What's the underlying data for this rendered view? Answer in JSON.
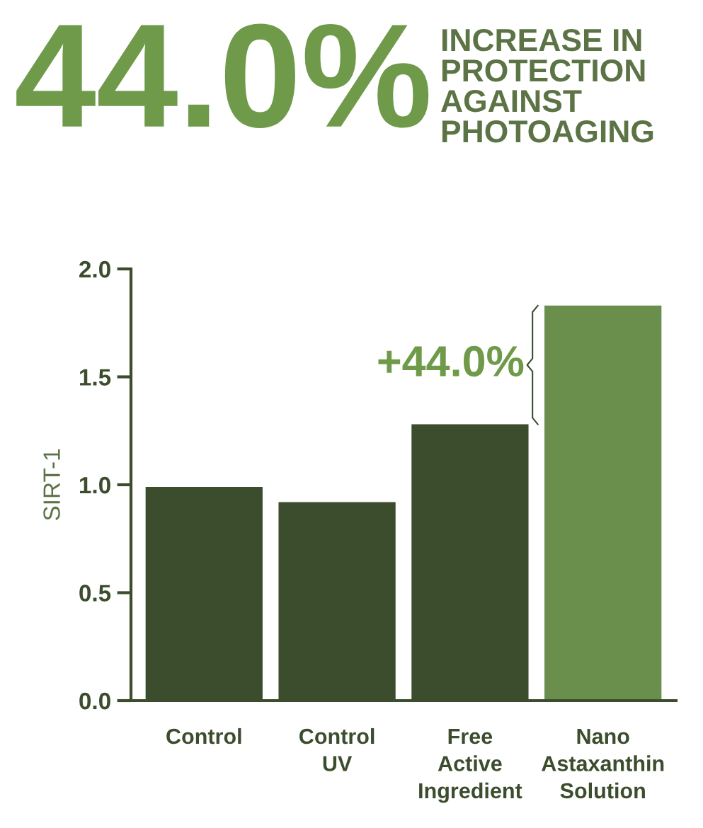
{
  "chart_data": {
    "type": "bar",
    "title": "44.0%",
    "subtitle": "INCREASE IN\nPROTECTION\nAGAINST\nPHOTOAGING",
    "ylabel": "SIRT-1",
    "categories": [
      "Control",
      "Control\nUV",
      "Free\nActive\nIngredient",
      "Nano\nAstaxanthin\nSolution"
    ],
    "values": [
      0.99,
      0.92,
      1.28,
      1.83
    ],
    "colors": [
      "#3b4d2d",
      "#3b4d2d",
      "#3b4d2d",
      "#6a8f4c"
    ],
    "ylim": [
      0,
      2.0
    ],
    "yticks": [
      {
        "value": 0,
        "label": "0.0"
      },
      {
        "value": 0.5,
        "label": "0.5"
      },
      {
        "value": 1.0,
        "label": "1.0"
      },
      {
        "value": 1.5,
        "label": "1.5"
      },
      {
        "value": 2.0,
        "label": "2.0"
      }
    ],
    "annotations": [
      "+44.0%"
    ],
    "grid": false,
    "legend": false
  }
}
